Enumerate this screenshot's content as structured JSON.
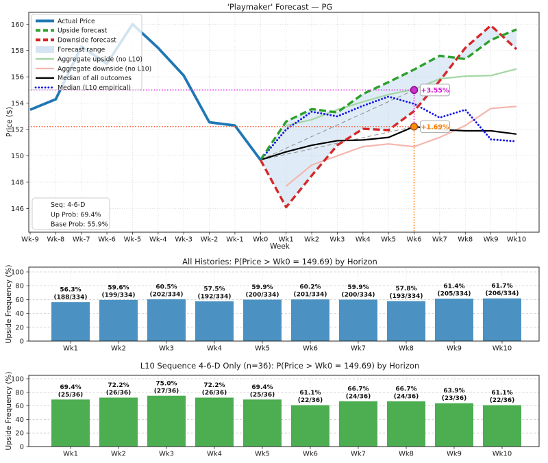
{
  "chart_data": [
    {
      "type": "line",
      "title": "'Playmaker' Forecast — PG",
      "xlabel": "Week",
      "ylabel": "Price ($)",
      "x_ticklabels": [
        "Wk-9",
        "Wk-8",
        "Wk-7",
        "Wk-6",
        "Wk-5",
        "Wk-4",
        "Wk-3",
        "Wk-2",
        "Wk-1",
        "Wk0",
        "Wk1",
        "Wk2",
        "Wk3",
        "Wk4",
        "Wk5",
        "Wk6",
        "Wk7",
        "Wk8",
        "Wk9",
        "Wk10"
      ],
      "yticks": [
        146,
        148,
        150,
        152,
        154,
        156,
        158,
        160
      ],
      "ylim": [
        144.2,
        160.9
      ],
      "wk0_price": 149.69,
      "series": [
        {
          "name": "Actual Price",
          "color": "#1f77b4",
          "dash": "none",
          "width": 3.8,
          "start": 0,
          "values": [
            153.5,
            154.3,
            158.3,
            157.0,
            160.0,
            158.2,
            156.1,
            152.55,
            152.3,
            149.69
          ]
        },
        {
          "name": "Upside forecast",
          "color": "#2ca02c",
          "dash": "10 5",
          "width": 3.4,
          "start": 9,
          "values": [
            149.69,
            152.6,
            153.55,
            153.3,
            154.7,
            155.6,
            156.55,
            157.6,
            157.35,
            158.8,
            159.6
          ]
        },
        {
          "name": "Downside forecast",
          "color": "#d62728",
          "dash": "10 5",
          "width": 3.4,
          "start": 9,
          "values": [
            149.69,
            146.1,
            148.5,
            150.8,
            152.05,
            151.95,
            153.4,
            155.7,
            158.2,
            159.9,
            158.1
          ]
        },
        {
          "name": "Aggregate upside (no L10)",
          "color": "#a3d6a3",
          "dash": "none",
          "width": 2.2,
          "start": 10,
          "values": [
            152.3,
            152.75,
            153.5,
            154.1,
            154.65,
            155.05,
            155.85,
            156.05,
            156.1,
            156.6
          ]
        },
        {
          "name": "Aggregate downside (no L10)",
          "color": "#f4b6ad",
          "dash": "none",
          "width": 2.2,
          "start": 10,
          "values": [
            147.7,
            149.3,
            150.0,
            150.7,
            150.9,
            150.7,
            151.4,
            152.3,
            153.6,
            153.75
          ]
        },
        {
          "name": "Median of all outcomes",
          "color": "#000000",
          "dash": "none",
          "width": 2.2,
          "start": 9,
          "values": [
            149.69,
            150.3,
            150.8,
            151.15,
            151.2,
            151.4,
            152.22,
            152.0,
            151.9,
            151.9,
            151.65
          ]
        },
        {
          "name": "Median (L10 empirical)",
          "color": "#1515e6",
          "dash": "0.1 4.6",
          "width": 2.9,
          "start": 9,
          "linecap": "round",
          "values": [
            149.69,
            152.0,
            153.35,
            153.0,
            153.8,
            154.5,
            153.95,
            152.9,
            153.5,
            151.25,
            151.1
          ]
        }
      ],
      "band": {
        "name": "Forecast range",
        "color": "#aecde8",
        "opacity": 0.4,
        "upper": 1,
        "lower": 2
      },
      "guide_lines": [
        {
          "x1": 9,
          "y1": 149.69,
          "x2": 15,
          "y2": 155.0
        },
        {
          "x1": 9,
          "y1": 149.69,
          "x2": 15,
          "y2": 152.22
        }
      ],
      "ref_lines": [
        {
          "orient": "h",
          "y": 155.0,
          "to_x": 15,
          "color": "#e81ce8"
        },
        {
          "orient": "h",
          "y": 152.22,
          "to_x": 15,
          "color": "#ff5a36"
        },
        {
          "orient": "v",
          "x": 15,
          "y1": 155.0,
          "y2": 152.22,
          "color": "#e81ce8"
        },
        {
          "orient": "v",
          "x": 15,
          "y1": 152.22,
          "y2": "bottom",
          "color": "#ff7f0e"
        }
      ],
      "markers": [
        {
          "x": 15,
          "y": 155.0,
          "fill": "#cc33cc",
          "edge": "#8c0a8c",
          "label": "+3.55%",
          "label_color": "#d414d4"
        },
        {
          "x": 15,
          "y": 152.22,
          "fill": "#ff8c00",
          "edge": "#a0522d",
          "label": "+1.69%",
          "label_color": "#f57c00"
        }
      ],
      "legend": [
        {
          "label": "Actual Price",
          "color": "#1f77b4",
          "kind": "thick"
        },
        {
          "label": "Upside forecast",
          "color": "#2ca02c",
          "kind": "thickdash"
        },
        {
          "label": "Downside forecast",
          "color": "#d62728",
          "kind": "thickdash"
        },
        {
          "label": "Forecast range",
          "color": "#d4e4f2",
          "kind": "patch"
        },
        {
          "label": "Aggregate upside (no L10)",
          "color": "#a3d6a3",
          "kind": "line"
        },
        {
          "label": "Aggregate downside (no L10)",
          "color": "#f4b6ad",
          "kind": "line"
        },
        {
          "label": "Median of all outcomes",
          "color": "#000000",
          "kind": "line"
        },
        {
          "label": "Median (L10 empirical)",
          "color": "#1515e6",
          "kind": "dotted"
        }
      ],
      "info_box": {
        "lines": [
          "Seq: 4-6-D",
          "Up Prob: 69.4%",
          "Base Prob: 55.9%"
        ]
      }
    },
    {
      "type": "bar",
      "title": "All Histories: P(Price > Wk0 = 149.69) by Horizon",
      "ylabel": "Upside Frequency (%)",
      "categories": [
        "Wk1",
        "Wk2",
        "Wk3",
        "Wk4",
        "Wk5",
        "Wk6",
        "Wk7",
        "Wk8",
        "Wk9",
        "Wk10"
      ],
      "values": [
        56.3,
        59.6,
        60.5,
        57.5,
        59.9,
        60.2,
        59.9,
        57.8,
        61.4,
        61.7
      ],
      "counts": [
        188,
        199,
        202,
        192,
        200,
        201,
        200,
        193,
        205,
        206
      ],
      "n": 334,
      "pct_labels": [
        "56.3%",
        "59.6%",
        "60.5%",
        "57.5%",
        "59.9%",
        "60.2%",
        "59.9%",
        "57.8%",
        "61.4%",
        "61.7%"
      ],
      "count_labels": [
        "(188/334)",
        "(199/334)",
        "(202/334)",
        "(192/334)",
        "(200/334)",
        "(201/334)",
        "(200/334)",
        "(193/334)",
        "(205/334)",
        "(206/334)"
      ],
      "ylim": [
        0,
        100
      ],
      "yticks": [
        0,
        20,
        40,
        60,
        80,
        100
      ],
      "bar_color": "#4b92c3"
    },
    {
      "type": "bar",
      "title": "L10 Sequence 4-6-D Only (n=36): P(Price > Wk0 = 149.69) by Horizon",
      "ylabel": "Upside Frequency (%)",
      "categories": [
        "Wk1",
        "Wk2",
        "Wk3",
        "Wk4",
        "Wk5",
        "Wk6",
        "Wk7",
        "Wk8",
        "Wk9",
        "Wk10"
      ],
      "values": [
        69.4,
        72.2,
        75.0,
        72.2,
        69.4,
        61.1,
        66.7,
        66.7,
        63.9,
        61.1
      ],
      "counts": [
        25,
        26,
        27,
        26,
        25,
        22,
        24,
        24,
        23,
        22
      ],
      "n": 36,
      "pct_labels": [
        "69.4%",
        "72.2%",
        "75.0%",
        "72.2%",
        "69.4%",
        "61.1%",
        "66.7%",
        "66.7%",
        "63.9%",
        "61.1%"
      ],
      "count_labels": [
        "(25/36)",
        "(26/36)",
        "(27/36)",
        "(26/36)",
        "(25/36)",
        "(22/36)",
        "(24/36)",
        "(24/36)",
        "(23/36)",
        "(22/36)"
      ],
      "ylim": [
        0,
        100
      ],
      "yticks": [
        0,
        20,
        40,
        60,
        80,
        100
      ],
      "bar_color": "#4cae50"
    }
  ]
}
